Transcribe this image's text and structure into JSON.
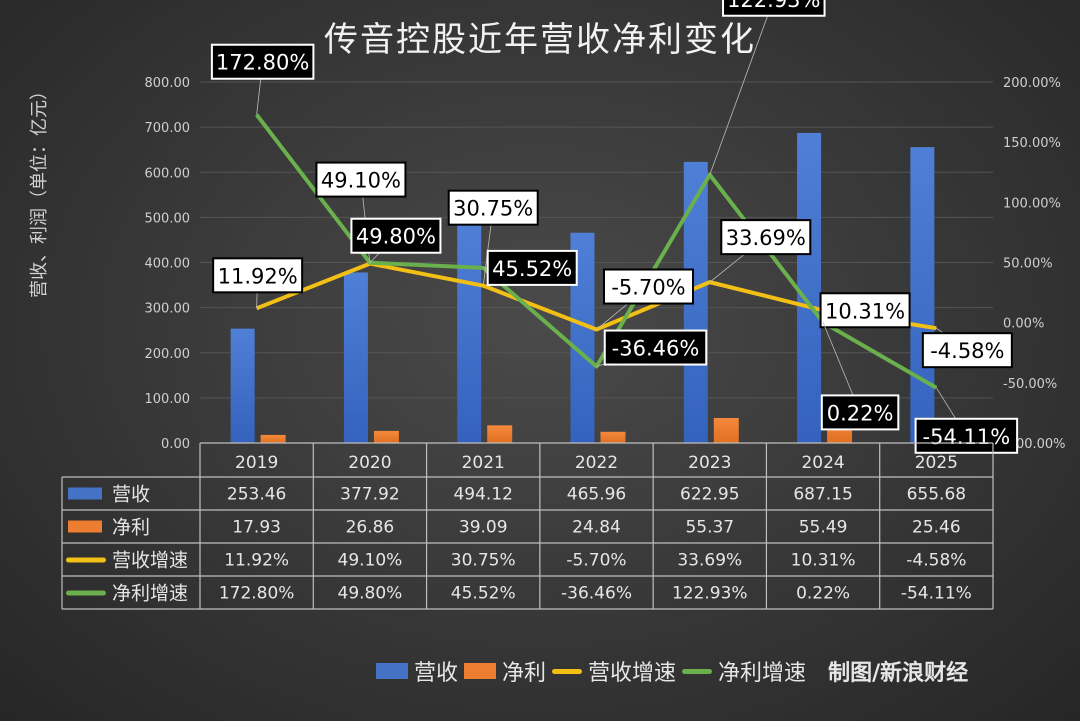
{
  "title": "传音控股近年营收净利变化",
  "credit": "制图/新浪财经",
  "chart_data": {
    "type": "bar+line",
    "title": "传音控股近年营收净利变化",
    "ylabel": "营收、利润（单位：亿元）",
    "categories": [
      "2019",
      "2020",
      "2021",
      "2022",
      "2023",
      "2024",
      "2025"
    ],
    "ylim": [
      0,
      800
    ],
    "yticks": [
      "0.00",
      "100.00",
      "200.00",
      "300.00",
      "400.00",
      "500.00",
      "600.00",
      "700.00",
      "800.00"
    ],
    "y2lim": [
      -100,
      200
    ],
    "y2ticks": [
      "-100.00%",
      "-50.00%",
      "0.00%",
      "50.00%",
      "100.00%",
      "150.00%",
      "200.00%"
    ],
    "grid": true,
    "legend_position": "bottom",
    "data_table": true,
    "series": [
      {
        "name": "营收",
        "type": "bar",
        "axis": "left",
        "color": "#4472c4",
        "values": [
          253.46,
          377.92,
          494.12,
          465.96,
          622.95,
          687.15,
          655.68
        ],
        "labels": [
          "253.46",
          "377.92",
          "494.12",
          "465.96",
          "622.95",
          "687.15",
          "655.68"
        ]
      },
      {
        "name": "净利",
        "type": "bar",
        "axis": "left",
        "color": "#ed7d31",
        "values": [
          17.93,
          26.86,
          39.09,
          24.84,
          55.37,
          55.49,
          25.46
        ],
        "labels": [
          "17.93",
          "26.86",
          "39.09",
          "24.84",
          "55.37",
          "55.49",
          "25.46"
        ]
      },
      {
        "name": "营收增速",
        "type": "line",
        "axis": "right",
        "color": "#f2c014",
        "values": [
          11.92,
          49.1,
          30.75,
          -5.7,
          33.69,
          10.31,
          -4.58
        ],
        "labels": [
          "11.92%",
          "49.10%",
          "30.75%",
          "-5.70%",
          "33.69%",
          "10.31%",
          "-4.58%"
        ]
      },
      {
        "name": "净利增速",
        "type": "line",
        "axis": "right",
        "color": "#6ab04c",
        "values": [
          172.8,
          49.8,
          45.52,
          -36.46,
          122.93,
          0.22,
          -54.11
        ],
        "labels": [
          "172.80%",
          "49.80%",
          "45.52%",
          "-36.46%",
          "122.93%",
          "0.22%",
          "-54.11%"
        ]
      }
    ]
  }
}
